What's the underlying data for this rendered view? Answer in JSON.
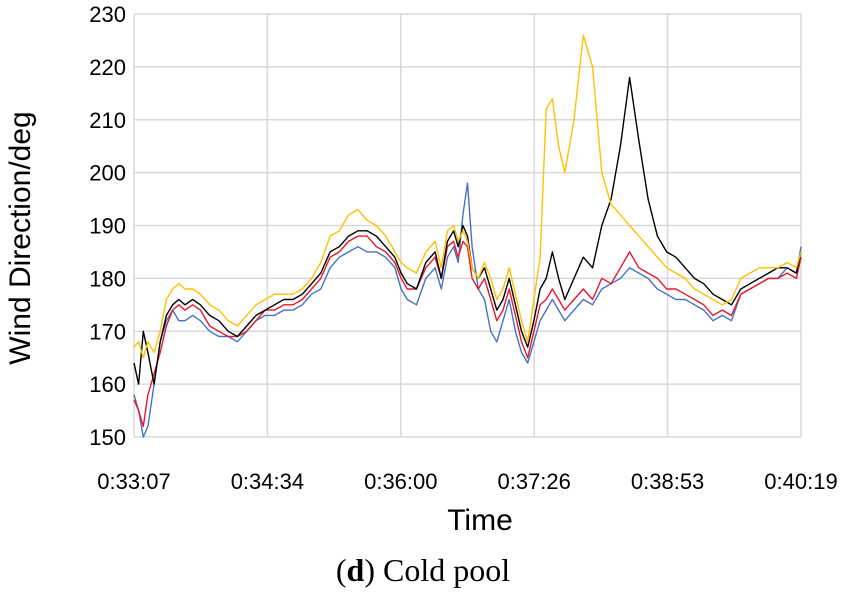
{
  "caption": {
    "prefix": "(",
    "letter": "d",
    "suffix": ") Cold pool"
  },
  "chart_data": {
    "type": "line",
    "title": "",
    "xlabel": "Time",
    "ylabel": "Wind Direction/deg",
    "ylim": [
      150,
      230
    ],
    "yticks": [
      150,
      160,
      170,
      180,
      190,
      200,
      210,
      220,
      230
    ],
    "xticks": [
      "0:33:07",
      "0:34:34",
      "0:36:00",
      "0:37:26",
      "0:38:53",
      "0:40:19"
    ],
    "xlim_seconds": [
      1987,
      2419
    ],
    "grid": "both",
    "legend": "none",
    "series": [
      {
        "color": "#4472c4",
        "x": [
          1987,
          1990,
          1993,
          1996,
          2000,
          2004,
          2008,
          2012,
          2016,
          2020,
          2025,
          2030,
          2036,
          2042,
          2048,
          2054,
          2060,
          2066,
          2072,
          2078,
          2084,
          2090,
          2096,
          2102,
          2108,
          2114,
          2120,
          2126,
          2132,
          2138,
          2144,
          2150,
          2156,
          2160,
          2164,
          2170,
          2176,
          2182,
          2186,
          2190,
          2194,
          2197,
          2200,
          2203,
          2206,
          2210,
          2214,
          2218,
          2222,
          2226,
          2230,
          2234,
          2238,
          2242,
          2246,
          2250,
          2254,
          2258,
          2262,
          2266,
          2272,
          2278,
          2284,
          2290,
          2296,
          2302,
          2308,
          2314,
          2320,
          2326,
          2332,
          2338,
          2344,
          2350,
          2356,
          2362,
          2368,
          2374,
          2380,
          2386,
          2392,
          2398,
          2404,
          2410,
          2416,
          2419
        ],
        "values": [
          158,
          155,
          150,
          152,
          160,
          168,
          172,
          174,
          172,
          172,
          173,
          172,
          170,
          169,
          169,
          168,
          170,
          172,
          173,
          173,
          174,
          174,
          175,
          177,
          178,
          182,
          184,
          185,
          186,
          185,
          185,
          184,
          182,
          178,
          176,
          175,
          180,
          182,
          178,
          184,
          186,
          183,
          192,
          198,
          186,
          178,
          176,
          170,
          168,
          172,
          176,
          170,
          166,
          164,
          168,
          172,
          174,
          176,
          174,
          172,
          174,
          176,
          175,
          178,
          179,
          180,
          182,
          181,
          180,
          178,
          177,
          176,
          176,
          175,
          174,
          172,
          173,
          172,
          177,
          178,
          179,
          180,
          180,
          182,
          181,
          186
        ]
      },
      {
        "color": "#e8182c",
        "x": [
          1987,
          1990,
          1993,
          1996,
          2000,
          2004,
          2008,
          2012,
          2016,
          2020,
          2025,
          2030,
          2036,
          2042,
          2048,
          2054,
          2060,
          2066,
          2072,
          2078,
          2084,
          2090,
          2096,
          2102,
          2108,
          2114,
          2120,
          2126,
          2132,
          2138,
          2144,
          2150,
          2156,
          2160,
          2164,
          2170,
          2176,
          2182,
          2186,
          2190,
          2194,
          2197,
          2200,
          2203,
          2206,
          2210,
          2214,
          2218,
          2222,
          2226,
          2230,
          2234,
          2238,
          2242,
          2246,
          2250,
          2254,
          2258,
          2262,
          2266,
          2272,
          2278,
          2284,
          2290,
          2296,
          2302,
          2308,
          2314,
          2320,
          2326,
          2332,
          2338,
          2344,
          2350,
          2356,
          2362,
          2368,
          2374,
          2380,
          2386,
          2392,
          2398,
          2404,
          2410,
          2416,
          2419
        ],
        "values": [
          157,
          155,
          152,
          158,
          162,
          166,
          171,
          174,
          175,
          174,
          175,
          174,
          171,
          170,
          169,
          169,
          170,
          172,
          174,
          174,
          175,
          175,
          176,
          178,
          180,
          184,
          185,
          187,
          188,
          188,
          186,
          185,
          183,
          180,
          178,
          178,
          182,
          184,
          180,
          186,
          187,
          184,
          187,
          186,
          180,
          178,
          180,
          176,
          172,
          174,
          178,
          173,
          168,
          165,
          170,
          175,
          176,
          178,
          176,
          174,
          176,
          178,
          176,
          180,
          179,
          182,
          185,
          182,
          181,
          180,
          178,
          178,
          177,
          176,
          175,
          173,
          174,
          173,
          177,
          178,
          179,
          180,
          180,
          181,
          180,
          184
        ]
      },
      {
        "color": "#000000",
        "x": [
          1987,
          1990,
          1993,
          1996,
          2000,
          2004,
          2008,
          2012,
          2016,
          2020,
          2025,
          2030,
          2036,
          2042,
          2048,
          2054,
          2060,
          2066,
          2072,
          2078,
          2084,
          2090,
          2096,
          2102,
          2108,
          2114,
          2120,
          2126,
          2132,
          2138,
          2144,
          2150,
          2156,
          2160,
          2164,
          2170,
          2176,
          2182,
          2186,
          2190,
          2194,
          2197,
          2200,
          2203,
          2206,
          2210,
          2214,
          2218,
          2222,
          2226,
          2230,
          2234,
          2238,
          2242,
          2246,
          2250,
          2254,
          2258,
          2262,
          2266,
          2272,
          2278,
          2284,
          2290,
          2296,
          2302,
          2308,
          2314,
          2320,
          2326,
          2332,
          2338,
          2344,
          2350,
          2356,
          2362,
          2368,
          2374,
          2380,
          2386,
          2392,
          2398,
          2404,
          2410,
          2416,
          2419
        ],
        "values": [
          164,
          160,
          170,
          166,
          160,
          168,
          173,
          175,
          176,
          175,
          176,
          175,
          173,
          172,
          170,
          169,
          171,
          173,
          174,
          175,
          176,
          176,
          177,
          179,
          181,
          185,
          186,
          188,
          189,
          189,
          188,
          186,
          184,
          181,
          179,
          178,
          183,
          185,
          180,
          187,
          189,
          186,
          190,
          188,
          182,
          180,
          182,
          178,
          174,
          176,
          180,
          175,
          170,
          167,
          172,
          178,
          180,
          185,
          180,
          176,
          180,
          184,
          182,
          190,
          195,
          205,
          218,
          206,
          195,
          188,
          185,
          184,
          182,
          180,
          179,
          177,
          176,
          175,
          178,
          179,
          180,
          181,
          182,
          182,
          181,
          185
        ]
      },
      {
        "color": "#ffc000",
        "x": [
          1987,
          1990,
          1993,
          1996,
          2000,
          2004,
          2008,
          2012,
          2016,
          2020,
          2025,
          2030,
          2036,
          2042,
          2048,
          2054,
          2060,
          2066,
          2072,
          2078,
          2084,
          2090,
          2096,
          2102,
          2108,
          2114,
          2120,
          2126,
          2132,
          2138,
          2144,
          2150,
          2156,
          2160,
          2164,
          2170,
          2176,
          2182,
          2186,
          2190,
          2194,
          2197,
          2200,
          2203,
          2206,
          2210,
          2214,
          2218,
          2222,
          2226,
          2230,
          2234,
          2238,
          2242,
          2246,
          2250,
          2254,
          2258,
          2262,
          2266,
          2272,
          2278,
          2284,
          2290,
          2296,
          2302,
          2308,
          2314,
          2320,
          2326,
          2332,
          2338,
          2344,
          2350,
          2356,
          2362,
          2368,
          2374,
          2380,
          2386,
          2392,
          2398,
          2404,
          2410,
          2416,
          2419
        ],
        "values": [
          167,
          168,
          165,
          168,
          166,
          170,
          176,
          178,
          179,
          178,
          178,
          177,
          175,
          174,
          172,
          171,
          173,
          175,
          176,
          177,
          177,
          177,
          178,
          180,
          183,
          188,
          189,
          192,
          193,
          191,
          190,
          188,
          185,
          183,
          182,
          181,
          185,
          187,
          182,
          189,
          190,
          187,
          189,
          187,
          182,
          180,
          183,
          180,
          176,
          178,
          182,
          177,
          172,
          168,
          176,
          184,
          212,
          214,
          205,
          200,
          210,
          226,
          220,
          200,
          194,
          192,
          190,
          188,
          186,
          184,
          182,
          181,
          180,
          178,
          177,
          176,
          175,
          176,
          180,
          181,
          182,
          182,
          182,
          183,
          182,
          185
        ]
      }
    ]
  }
}
